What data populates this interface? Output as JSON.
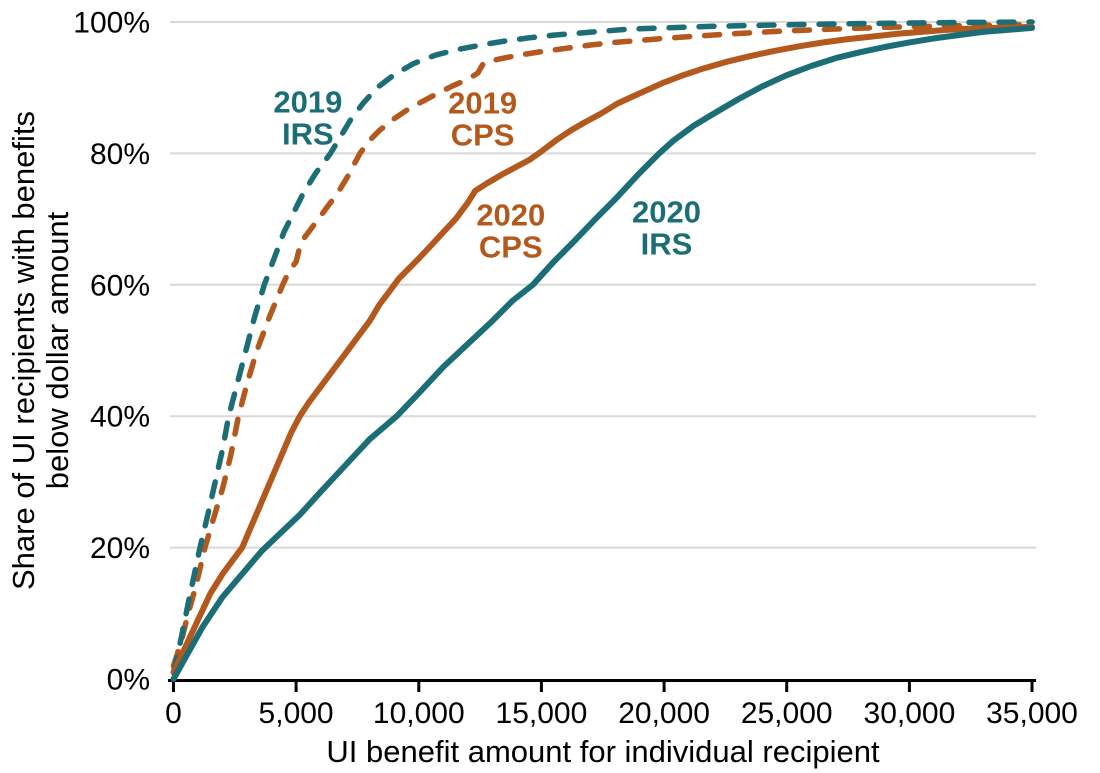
{
  "chart_data": {
    "type": "line",
    "title": "",
    "xlabel": "UI benefit amount for individual recipient",
    "ylabel": [
      "Share of UI recipients with benefits",
      "below dollar amount"
    ],
    "xlim": [
      0,
      35000
    ],
    "ylim": [
      0,
      100
    ],
    "grid": "horizontal-only",
    "legend_position": "inline-annotations",
    "colors": {
      "teal": "#1B6E75",
      "orange": "#B3591D",
      "grid": "#D8D8D8",
      "axis": "#000000",
      "text": "#000000"
    },
    "x_ticks": [
      {
        "v": 0,
        "label": "0"
      },
      {
        "v": 5000,
        "label": "5,000"
      },
      {
        "v": 10000,
        "label": "10,000"
      },
      {
        "v": 15000,
        "label": "15,000"
      },
      {
        "v": 20000,
        "label": "20,000"
      },
      {
        "v": 25000,
        "label": "25,000"
      },
      {
        "v": 30000,
        "label": "30,000"
      },
      {
        "v": 35000,
        "label": "35,000"
      }
    ],
    "y_ticks": [
      {
        "v": 0,
        "label": "0%"
      },
      {
        "v": 20,
        "label": "20%"
      },
      {
        "v": 40,
        "label": "40%"
      },
      {
        "v": 60,
        "label": "60%"
      },
      {
        "v": 80,
        "label": "80%"
      },
      {
        "v": 100,
        "label": "100%"
      }
    ],
    "series": [
      {
        "id": "2019-cps",
        "name": "2019 CPS",
        "color": "orange",
        "line_style": "dashed",
        "points": [
          [
            0,
            2
          ],
          [
            300,
            5.5
          ],
          [
            600,
            10
          ],
          [
            900,
            14
          ],
          [
            1285,
            20
          ],
          [
            1600,
            24
          ],
          [
            2000,
            29
          ],
          [
            2330,
            34
          ],
          [
            2650,
            40
          ],
          [
            3000,
            45
          ],
          [
            3400,
            50
          ],
          [
            3900,
            55
          ],
          [
            4450,
            60
          ],
          [
            4700,
            62
          ],
          [
            5000,
            63.5
          ],
          [
            5200,
            66.5
          ],
          [
            5600,
            68.5
          ],
          [
            6200,
            71.5
          ],
          [
            6700,
            74
          ],
          [
            7100,
            76.5
          ],
          [
            7600,
            80
          ],
          [
            8000,
            82
          ],
          [
            8400,
            83.5
          ],
          [
            9000,
            85.3
          ],
          [
            9600,
            86.8
          ],
          [
            10200,
            88
          ],
          [
            10800,
            89.2
          ],
          [
            11400,
            90.3
          ],
          [
            12000,
            91.3
          ],
          [
            12400,
            92.2
          ],
          [
            12650,
            93.8
          ],
          [
            13200,
            94.3
          ],
          [
            14000,
            94.9
          ],
          [
            15000,
            95.5
          ],
          [
            16000,
            96
          ],
          [
            17000,
            96.5
          ],
          [
            18000,
            96.9
          ],
          [
            19000,
            97.2
          ],
          [
            20000,
            97.5
          ],
          [
            21500,
            97.9
          ],
          [
            23000,
            98.25
          ],
          [
            24500,
            98.55
          ],
          [
            26000,
            98.8
          ],
          [
            27500,
            99
          ],
          [
            29000,
            99.2
          ],
          [
            31000,
            99.35
          ],
          [
            33000,
            99.5
          ],
          [
            35000,
            99.6
          ]
        ]
      },
      {
        "id": "2019-irs",
        "name": "2019 IRS",
        "color": "teal",
        "line_style": "dashed",
        "points": [
          [
            0,
            1
          ],
          [
            300,
            6
          ],
          [
            600,
            11.5
          ],
          [
            1080,
            20
          ],
          [
            1400,
            25
          ],
          [
            1700,
            30
          ],
          [
            2000,
            35
          ],
          [
            2250,
            40
          ],
          [
            2600,
            45
          ],
          [
            2950,
            50
          ],
          [
            3300,
            55
          ],
          [
            3700,
            60
          ],
          [
            4100,
            64
          ],
          [
            4500,
            68
          ],
          [
            4900,
            71
          ],
          [
            5300,
            74
          ],
          [
            5800,
            77
          ],
          [
            6400,
            80
          ],
          [
            6800,
            82.5
          ],
          [
            7200,
            85
          ],
          [
            7700,
            87.5
          ],
          [
            8300,
            90
          ],
          [
            9000,
            92
          ],
          [
            9800,
            93.7
          ],
          [
            10700,
            95
          ],
          [
            11700,
            95.9
          ],
          [
            12700,
            96.6
          ],
          [
            13500,
            97.1
          ],
          [
            14500,
            97.6
          ],
          [
            15500,
            98
          ],
          [
            16500,
            98.3
          ],
          [
            17500,
            98.6
          ],
          [
            18500,
            98.9
          ],
          [
            20000,
            99.1
          ],
          [
            22000,
            99.35
          ],
          [
            24000,
            99.5
          ],
          [
            26000,
            99.65
          ],
          [
            28000,
            99.75
          ],
          [
            30000,
            99.85
          ],
          [
            32000,
            99.92
          ],
          [
            35000,
            100
          ]
        ]
      },
      {
        "id": "2020-cps",
        "name": "2020 CPS",
        "color": "orange",
        "line_style": "solid",
        "points": [
          [
            0,
            1
          ],
          [
            500,
            5
          ],
          [
            1000,
            9
          ],
          [
            1500,
            13
          ],
          [
            2000,
            16
          ],
          [
            2400,
            18
          ],
          [
            2800,
            20
          ],
          [
            3200,
            23.5
          ],
          [
            3600,
            27
          ],
          [
            4000,
            30.5
          ],
          [
            4400,
            34
          ],
          [
            4800,
            37.5
          ],
          [
            5150,
            40
          ],
          [
            5500,
            42
          ],
          [
            6000,
            44.5
          ],
          [
            6400,
            46.5
          ],
          [
            6800,
            48.5
          ],
          [
            7200,
            50.5
          ],
          [
            7600,
            52.5
          ],
          [
            8000,
            54.5
          ],
          [
            8400,
            57
          ],
          [
            8800,
            59
          ],
          [
            9200,
            61
          ],
          [
            9600,
            62.5
          ],
          [
            10000,
            64
          ],
          [
            10500,
            66
          ],
          [
            11000,
            68
          ],
          [
            11500,
            70
          ],
          [
            12000,
            72.5
          ],
          [
            12300,
            74.3
          ],
          [
            12800,
            75.5
          ],
          [
            13400,
            76.8
          ],
          [
            14000,
            78
          ],
          [
            14500,
            79
          ],
          [
            15000,
            80.3
          ],
          [
            15600,
            82
          ],
          [
            16200,
            83.5
          ],
          [
            16800,
            84.8
          ],
          [
            17400,
            86
          ],
          [
            18100,
            87.6
          ],
          [
            18800,
            88.8
          ],
          [
            19400,
            89.8
          ],
          [
            20000,
            90.8
          ],
          [
            20700,
            91.8
          ],
          [
            21500,
            92.8
          ],
          [
            22500,
            93.9
          ],
          [
            23500,
            94.8
          ],
          [
            24500,
            95.6
          ],
          [
            25500,
            96.3
          ],
          [
            26500,
            96.9
          ],
          [
            27500,
            97.4
          ],
          [
            28500,
            97.8
          ],
          [
            29500,
            98.2
          ],
          [
            30500,
            98.5
          ],
          [
            31500,
            98.8
          ],
          [
            32500,
            99
          ],
          [
            33500,
            99.1
          ],
          [
            35000,
            99.25
          ]
        ]
      },
      {
        "id": "2020-irs",
        "name": "2020 IRS",
        "color": "teal",
        "line_style": "solid",
        "points": [
          [
            0,
            0
          ],
          [
            600,
            4
          ],
          [
            1200,
            8
          ],
          [
            2000,
            12.5
          ],
          [
            2800,
            16
          ],
          [
            3600,
            19.5
          ],
          [
            4300,
            22
          ],
          [
            5150,
            25
          ],
          [
            6000,
            28.5
          ],
          [
            7000,
            32.5
          ],
          [
            8000,
            36.5
          ],
          [
            9100,
            40
          ],
          [
            10000,
            43.5
          ],
          [
            11000,
            47.5
          ],
          [
            12000,
            51
          ],
          [
            13000,
            54.5
          ],
          [
            13800,
            57.5
          ],
          [
            14650,
            60
          ],
          [
            15500,
            63.5
          ],
          [
            16300,
            66.5
          ],
          [
            17200,
            70
          ],
          [
            18000,
            73
          ],
          [
            19000,
            77
          ],
          [
            19800,
            80
          ],
          [
            20400,
            82
          ],
          [
            21200,
            84.2
          ],
          [
            22000,
            86
          ],
          [
            23000,
            88.2
          ],
          [
            24000,
            90.2
          ],
          [
            25000,
            91.9
          ],
          [
            26000,
            93.3
          ],
          [
            27000,
            94.5
          ],
          [
            28000,
            95.4
          ],
          [
            29000,
            96.2
          ],
          [
            30000,
            96.9
          ],
          [
            31000,
            97.5
          ],
          [
            32000,
            98
          ],
          [
            33000,
            98.5
          ],
          [
            34000,
            98.8
          ],
          [
            35000,
            99.1
          ]
        ]
      }
    ],
    "annotations": [
      {
        "id": "2019-irs",
        "lines": [
          "2019",
          "IRS"
        ],
        "color": "teal",
        "anchor_x": 5480,
        "anchor_y": 85.5
      },
      {
        "id": "2019-cps",
        "lines": [
          "2019",
          "CPS"
        ],
        "color": "orange",
        "anchor_x": 12600,
        "anchor_y": 85.3
      },
      {
        "id": "2020-cps",
        "lines": [
          "2020",
          "CPS"
        ],
        "color": "orange",
        "anchor_x": 13750,
        "anchor_y": 68.3
      },
      {
        "id": "2020-irs",
        "lines": [
          "2020",
          "IRS"
        ],
        "color": "teal",
        "anchor_x": 20100,
        "anchor_y": 68.7
      }
    ]
  }
}
